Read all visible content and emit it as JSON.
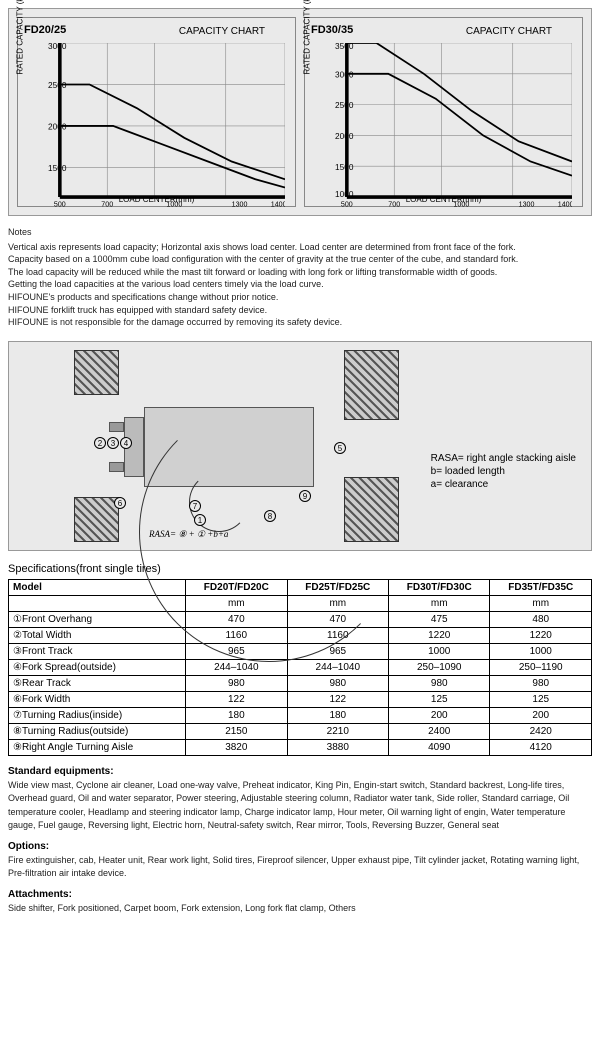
{
  "charts": [
    {
      "model": "FD20/25",
      "title": "CAPACITY CHART",
      "ylabel": "RATED CAPACITY (kg)",
      "xlabel": "LOAD CENTER(mm)",
      "ylim": [
        1500,
        3000
      ],
      "ytick_step": 500,
      "xlim": [
        500,
        1400
      ],
      "xticks": [
        500,
        700,
        1000,
        1300,
        1400
      ],
      "series": [
        {
          "color": "#000",
          "points": [
            [
              500,
              2500
            ],
            [
              600,
              2500
            ],
            [
              800,
              2200
            ],
            [
              1000,
              1900
            ],
            [
              1200,
              1700
            ],
            [
              1400,
              1550
            ]
          ]
        },
        {
          "color": "#000",
          "points": [
            [
              500,
              2000
            ],
            [
              700,
              2000
            ],
            [
              900,
              1850
            ],
            [
              1100,
              1650
            ],
            [
              1300,
              1550
            ],
            [
              1400,
              1500
            ]
          ]
        }
      ],
      "grid_color": "#888",
      "background": "#eaeaea",
      "line_width": 1.5
    },
    {
      "model": "FD30/35",
      "title": "CAPACITY CHART",
      "ylabel": "RATED CAPACITY (kg)",
      "xlabel": "LOAD CENTER(mm)",
      "ylim": [
        1000,
        3500
      ],
      "ytick_step": 500,
      "xlim": [
        500,
        1400
      ],
      "xticks": [
        500,
        700,
        1000,
        1300,
        1400
      ],
      "series": [
        {
          "color": "#000",
          "points": [
            [
              500,
              3500
            ],
            [
              600,
              3500
            ],
            [
              800,
              3000
            ],
            [
              1000,
              2400
            ],
            [
              1200,
              1900
            ],
            [
              1400,
              1600
            ]
          ]
        },
        {
          "color": "#000",
          "points": [
            [
              500,
              3000
            ],
            [
              650,
              3000
            ],
            [
              850,
              2600
            ],
            [
              1050,
              2100
            ],
            [
              1250,
              1700
            ],
            [
              1400,
              1450
            ]
          ]
        }
      ],
      "grid_color": "#888",
      "background": "#eaeaea",
      "line_width": 1.5
    }
  ],
  "notes_heading": "Notes",
  "notes": [
    "Vertical axis represents load capacity; Horizontal axis shows load center. Load center are determined from front face of the fork.",
    "Capacity based on a 1000mm cube load configuration with the center of gravity at the true center of the cube, and standard fork.",
    "The load capacity will be reduced while the mast tilt forward or loading with long fork or lifting transformable width of goods.",
    "Getting the load capacities at the various load centers timely via the load curve.",
    "HIFOUNE's products and specifications change without prior notice.",
    "HIFOUNE forklift truck has equipped with standard safety device.",
    "HIFOUNE is not responsible for the damage occurred by removing its safety device."
  ],
  "diagram_labels": {
    "rasa": "RASA= right angle stacking aisle",
    "b": "b= loaded length",
    "a": "a= clearance",
    "formula": "RASA= ⑧ + ① +b+a"
  },
  "spec_heading": "Specifications(front single tires)",
  "spec_table": {
    "header_label": "Model",
    "columns": [
      "FD20T/FD20C",
      "FD25T/FD25C",
      "FD30T/FD30C",
      "FD35T/FD35C"
    ],
    "unit_row": [
      "mm",
      "mm",
      "mm",
      "mm"
    ],
    "rows": [
      {
        "num": "①",
        "label": "Front Overhang",
        "vals": [
          "470",
          "470",
          "475",
          "480"
        ]
      },
      {
        "num": "②",
        "label": "Total Width",
        "vals": [
          "1160",
          "1160",
          "1220",
          "1220"
        ]
      },
      {
        "num": "③",
        "label": "Front Track",
        "vals": [
          "965",
          "965",
          "1000",
          "1000"
        ]
      },
      {
        "num": "④",
        "label": "Fork Spread(outside)",
        "vals": [
          "244–1040",
          "244–1040",
          "250–1090",
          "250–1190"
        ]
      },
      {
        "num": "⑤",
        "label": "Rear Track",
        "vals": [
          "980",
          "980",
          "980",
          "980"
        ]
      },
      {
        "num": "⑥",
        "label": "Fork Width",
        "vals": [
          "122",
          "122",
          "125",
          "125"
        ]
      },
      {
        "num": "⑦",
        "label": "Turning Radius(inside)",
        "vals": [
          "180",
          "180",
          "200",
          "200"
        ]
      },
      {
        "num": "⑧",
        "label": "Turning Radius(outside)",
        "vals": [
          "2150",
          "2210",
          "2400",
          "2420"
        ]
      },
      {
        "num": "⑨",
        "label": "Right Angle Turning Aisle",
        "vals": [
          "3820",
          "3880",
          "4090",
          "4120"
        ]
      }
    ]
  },
  "sections": [
    {
      "heading": "Standard equipments:",
      "text": "Wide view mast, Cyclone air cleaner, Load one-way valve, Preheat indicator, King Pin, Engin-start switch, Standard backrest, Long-life tires, Overhead guard, Oil and water separator, Power steering, Adjustable steering column, Radiator water tank, Side roller, Standard carriage, Oil temperature cooler, Headlamp and steering indicator lamp, Charge indicator lamp, Hour meter, Oil warning light of engin, Water temperature gauge, Fuel gauge, Reversing light, Electric horn, Neutral-safety switch, Rear mirror, Tools, Reversing Buzzer, General seat"
    },
    {
      "heading": "Options:",
      "text": "Fire extinguisher, cab, Heater unit, Rear work light, Solid tires, Fireproof silencer, Upper exhaust pipe, Tilt cylinder jacket, Rotating warning light, Pre-filtration air intake device."
    },
    {
      "heading": "Attachments:",
      "text": "Side shifter, Fork positioned, Carpet boom, Fork extension, Long fork flat clamp, Others"
    }
  ]
}
